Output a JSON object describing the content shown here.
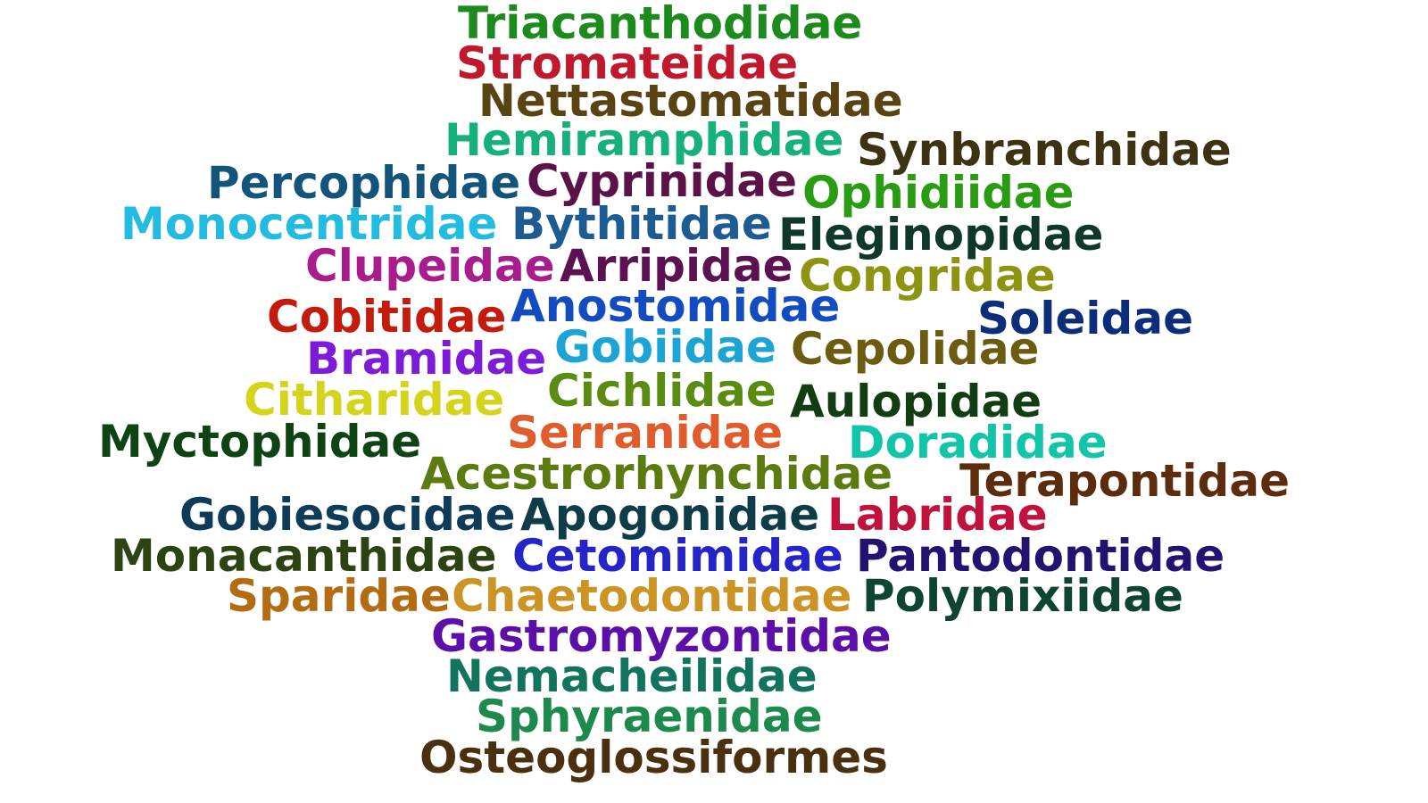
{
  "words": [
    {
      "text": "Triacanthodidae",
      "color": "#1c8a1c"
    },
    {
      "text": "Stromateidae",
      "color": "#c0182c"
    },
    {
      "text": "Nettastomatidae",
      "color": "#5a4312"
    },
    {
      "text": "Hemiramphidae",
      "color": "#16b07c"
    },
    {
      "text": "Synbranchidae",
      "color": "#3d3312"
    },
    {
      "text": "Percophidae",
      "color": "#12547a"
    },
    {
      "text": "Cyprinidae",
      "color": "#5a1248"
    },
    {
      "text": "Ophidiidae",
      "color": "#2a9c14"
    },
    {
      "text": "Monocentridae",
      "color": "#22bce0"
    },
    {
      "text": "Bythitidae",
      "color": "#1c5c92"
    },
    {
      "text": "Eleginopidae",
      "color": "#0e3828"
    },
    {
      "text": "Clupeidae",
      "color": "#a81c8c"
    },
    {
      "text": "Arripidae",
      "color": "#5c1252"
    },
    {
      "text": "Congridae",
      "color": "#8c9412"
    },
    {
      "text": "Cobitidae",
      "color": "#c41c0c"
    },
    {
      "text": "Anostomidae",
      "color": "#124cc0"
    },
    {
      "text": "Soleidae",
      "color": "#0c2e7a"
    },
    {
      "text": "Bramidae",
      "color": "#7c1cd8"
    },
    {
      "text": "Gobiidae",
      "color": "#1ca4d4"
    },
    {
      "text": "Cepolidae",
      "color": "#6c5c12"
    },
    {
      "text": "Citharidae",
      "color": "#d4d41c"
    },
    {
      "text": "Cichlidae",
      "color": "#5a8c12"
    },
    {
      "text": "Aulopidae",
      "color": "#123c12"
    },
    {
      "text": "Myctophidae",
      "color": "#0e4414"
    },
    {
      "text": "Serranidae",
      "color": "#e05c2c"
    },
    {
      "text": "Doradidae",
      "color": "#12c4a8"
    },
    {
      "text": "Acestrorhynchidae",
      "color": "#5c7c12"
    },
    {
      "text": "Terapontidae",
      "color": "#5c2c0c"
    },
    {
      "text": "Gobiesocidae",
      "color": "#0e3c58"
    },
    {
      "text": "Apogonidae",
      "color": "#0e3c48"
    },
    {
      "text": "Labridae",
      "color": "#c0123c"
    },
    {
      "text": "Monacanthidae",
      "color": "#2c4412"
    },
    {
      "text": "Cetomimidae",
      "color": "#2424c8"
    },
    {
      "text": "Pantodontidae",
      "color": "#241270"
    },
    {
      "text": "Sparidae",
      "color": "#b46c12"
    },
    {
      "text": "Chaetodontidae",
      "color": "#cc9424"
    },
    {
      "text": "Polymixiidae",
      "color": "#0e4432"
    },
    {
      "text": "Gastromyzontidae",
      "color": "#5c0ea8"
    },
    {
      "text": "Nemacheilidae",
      "color": "#12745c"
    },
    {
      "text": "Sphyraenidae",
      "color": "#1c8a4c"
    },
    {
      "text": "Osteoglossiformes",
      "color": "#4a300e"
    }
  ]
}
